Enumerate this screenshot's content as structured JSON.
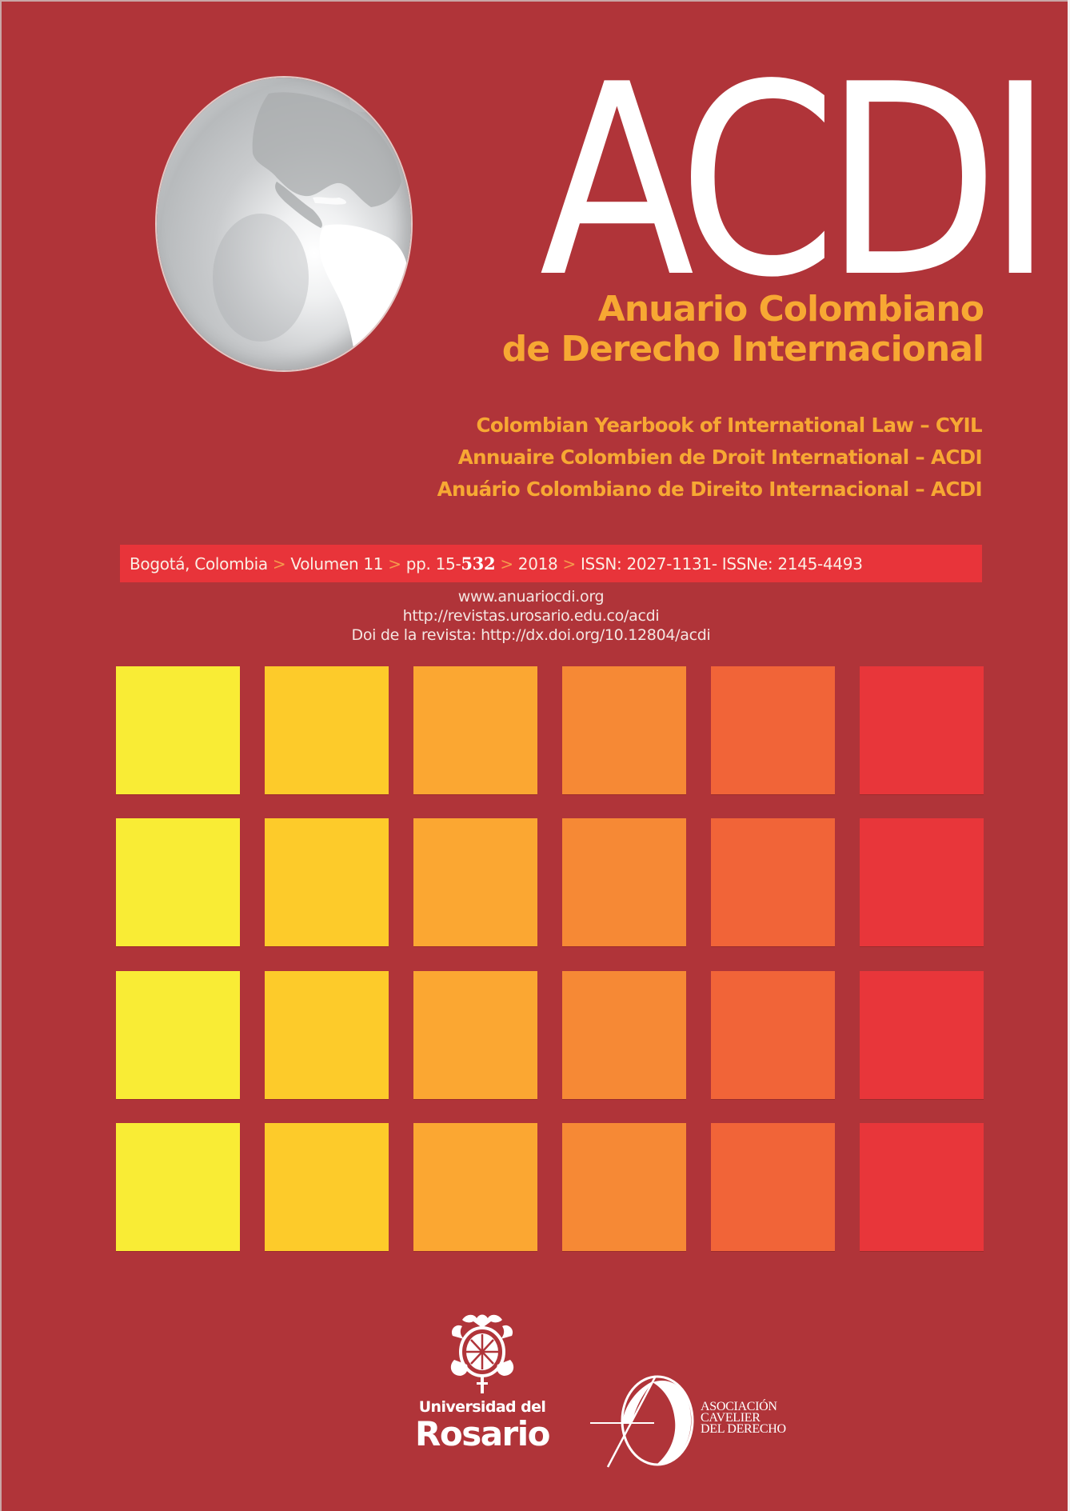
{
  "cover": {
    "background_color": "#b03439",
    "logo_text": "ACDI",
    "title_line1": "Anuario Colombiano",
    "title_line2": "de Derecho Internacional",
    "subtitles": [
      "Colombian Yearbook of International Law – CYIL",
      "Annuaire Colombien de Droit International – ACDI",
      "Anuário Colombiano de Direito Internacional – ACDI"
    ],
    "accent_color": "#f7a833"
  },
  "banner": {
    "city": "Bogotá, Colombia",
    "volume": "Volumen 11",
    "pages_prefix": "pp. 15-",
    "pages_end": "532",
    "year": "2018",
    "issn": "ISSN: 2027-1131- ISSNe: 2145-4493",
    "separator": ">",
    "color": "#e8343a"
  },
  "links": [
    "www.anuariocdi.org",
    "http://revistas.urosario.edu.co/acdi",
    "Doi de la revista: http://dx.doi.org/10.12804/acdi"
  ],
  "grid": {
    "rows": 4,
    "columns": 6,
    "column_colors": [
      "#f9ec35",
      "#fdcb2a",
      "#fba732",
      "#f68935",
      "#f16438",
      "#e8363a"
    ]
  },
  "logos": {
    "rosario": {
      "line1": "Universidad del",
      "line2": "Rosario"
    },
    "cavelier": {
      "lines": [
        "ASOCIACIÓN",
        "CAVELIER",
        "DEL DERECHO"
      ]
    }
  }
}
